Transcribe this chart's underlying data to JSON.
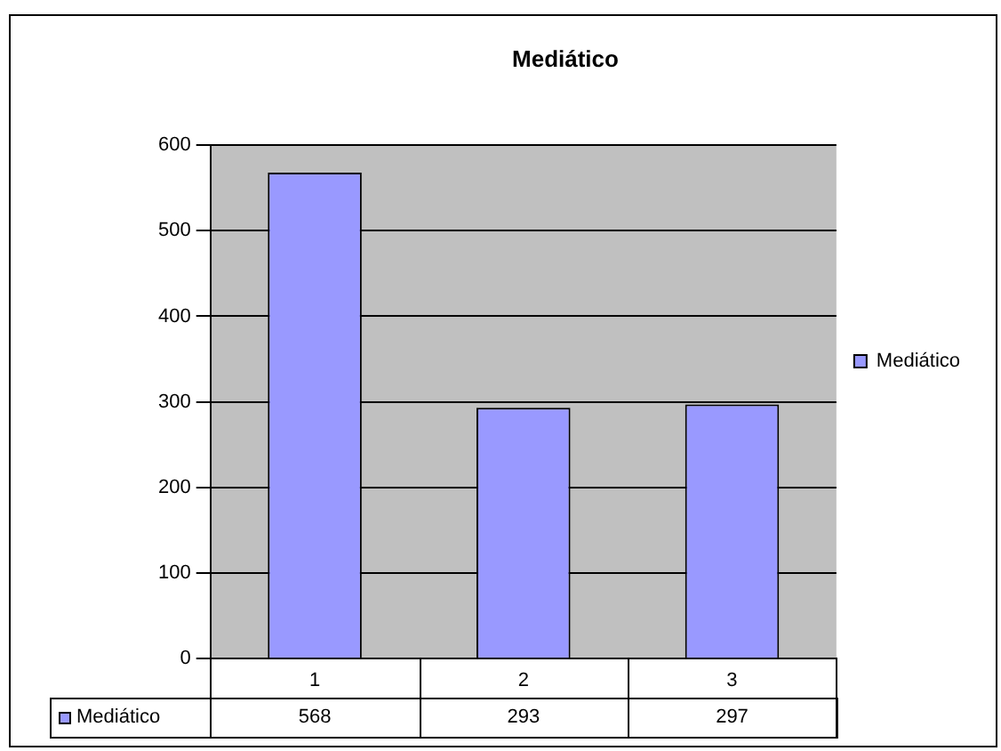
{
  "chart_data": {
    "type": "bar",
    "title": "Mediático",
    "categories": [
      "1",
      "2",
      "3"
    ],
    "series": [
      {
        "name": "Mediático",
        "color": "#9999ff",
        "values": [
          568,
          293,
          297
        ]
      }
    ],
    "ylim": [
      0,
      600
    ],
    "yticks": [
      0,
      100,
      200,
      300,
      400,
      500,
      600
    ],
    "grid": "y",
    "legend": "right",
    "data_labels": true
  }
}
